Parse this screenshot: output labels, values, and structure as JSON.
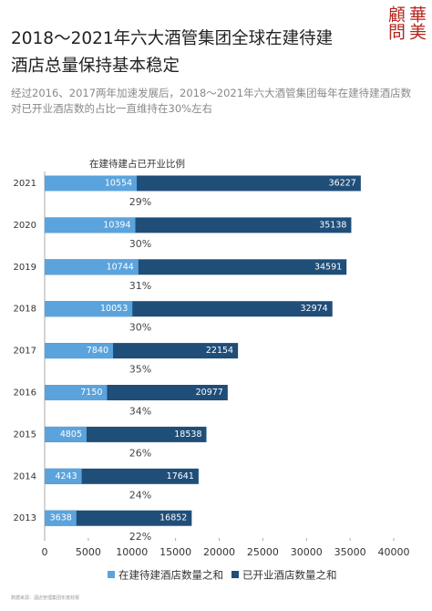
{
  "logo": "華美顧問",
  "chart_data": {
    "type": "bar",
    "title": [
      "2018～2021年六大酒管集团全球在建待建",
      "酒店总量保持基本稳定"
    ],
    "subtitle": "经过2016、2017两年加速发展后，2018～2021年六大酒管集团每年在建待建酒店数对已开业酒店数的占比一直维持在30%左右",
    "source": "数据来源：酒店管理集团年度财报",
    "categories": [
      "2021",
      "2020",
      "2019",
      "2018",
      "2017",
      "2016",
      "2015",
      "2014",
      "2013"
    ],
    "series": [
      {
        "name": "已开业酒店数量之和",
        "color": "#1f4e79",
        "values": [
          36227,
          35138,
          34591,
          32974,
          22154,
          20977,
          18538,
          17641,
          16852
        ]
      },
      {
        "name": "在建待建酒店数量之和",
        "color": "#5ba3dc",
        "values": [
          10554,
          10394,
          10744,
          10053,
          7840,
          7150,
          4805,
          4243,
          3638
        ]
      }
    ],
    "ratio": {
      "name": "在建待建占已开业比例",
      "values": [
        29,
        30,
        31,
        30,
        35,
        34,
        26,
        24,
        22
      ],
      "value_labels": [
        "29%",
        "30%",
        "31%",
        "30%",
        "35%",
        "34%",
        "26%",
        "24%",
        "22%"
      ]
    },
    "xlim": [
      0,
      40000
    ],
    "xticks": [
      0,
      5000,
      10000,
      15000,
      20000,
      25000,
      30000,
      35000,
      40000
    ]
  }
}
